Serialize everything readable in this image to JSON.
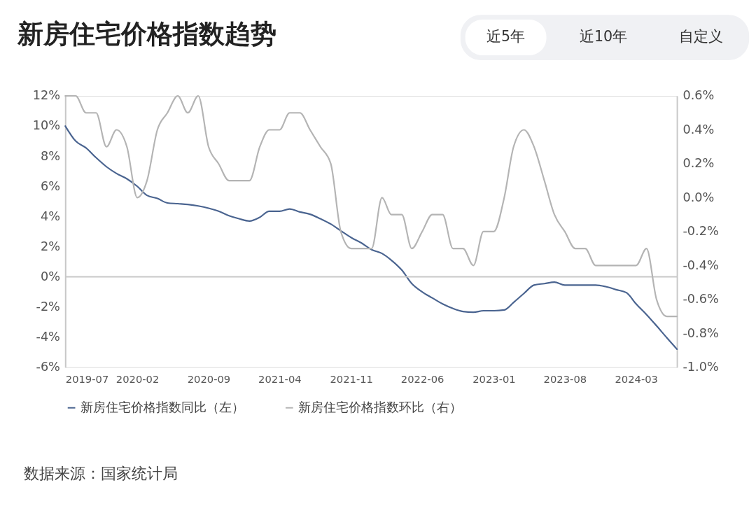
{
  "chart_data": {
    "type": "line",
    "title": "新房住宅价格指数趋势",
    "annotations": [
      "近5年",
      "近10年",
      "自定义",
      "数据来源：国家统计局"
    ],
    "x": [
      "2019-07",
      "2019-08",
      "2019-09",
      "2019-10",
      "2019-11",
      "2019-12",
      "2020-01",
      "2020-02",
      "2020-03",
      "2020-04",
      "2020-05",
      "2020-06",
      "2020-07",
      "2020-08",
      "2020-09",
      "2020-10",
      "2020-11",
      "2020-12",
      "2021-01",
      "2021-02",
      "2021-03",
      "2021-04",
      "2021-05",
      "2021-06",
      "2021-07",
      "2021-08",
      "2021-09",
      "2021-10",
      "2021-11",
      "2021-12",
      "2022-01",
      "2022-02",
      "2022-03",
      "2022-04",
      "2022-05",
      "2022-06",
      "2022-07",
      "2022-08",
      "2022-09",
      "2022-10",
      "2022-11",
      "2022-12",
      "2023-01",
      "2023-02",
      "2023-03",
      "2023-04",
      "2023-05",
      "2023-06",
      "2023-07",
      "2023-08",
      "2023-09",
      "2023-10",
      "2023-11",
      "2023-12",
      "2024-01",
      "2024-02",
      "2024-03",
      "2024-04",
      "2024-05",
      "2024-06",
      "2024-07"
    ],
    "series": [
      {
        "name": "新房住宅价格指数同比（左）",
        "color": "#4a6490",
        "values": [
          10.0,
          9.0,
          8.55,
          7.9,
          7.3,
          6.85,
          6.5,
          6.0,
          5.4,
          5.2,
          4.9,
          4.85,
          4.8,
          4.7,
          4.55,
          4.35,
          4.05,
          3.85,
          3.7,
          3.95,
          4.35,
          4.35,
          4.5,
          4.3,
          4.15,
          3.85,
          3.5,
          3.05,
          2.6,
          2.25,
          1.8,
          1.55,
          1.1,
          0.45,
          -0.45,
          -1.0,
          -1.4,
          -1.8,
          -2.1,
          -2.3,
          -2.35,
          -2.25,
          -2.25,
          -2.2,
          -1.7,
          -1.1,
          -0.55,
          -0.45,
          -0.35,
          -0.55,
          -0.55,
          -0.55,
          -0.55,
          -0.65,
          -0.85,
          -1.05,
          -1.8,
          -2.5,
          -3.25,
          -4.05,
          -4.8
        ]
      },
      {
        "name": "新房住宅价格指数环比（右）",
        "color": "#b4b4b4",
        "axis": "y2",
        "values": [
          0.6,
          0.6,
          0.5,
          0.5,
          0.3,
          0.4,
          0.3,
          0.0,
          0.1,
          0.4,
          0.5,
          0.6,
          0.5,
          0.6,
          0.3,
          0.2,
          0.1,
          0.1,
          0.1,
          0.3,
          0.4,
          0.4,
          0.5,
          0.5,
          0.4,
          0.3,
          0.2,
          -0.2,
          -0.3,
          -0.3,
          -0.3,
          0.0,
          -0.1,
          -0.1,
          -0.3,
          -0.2,
          -0.1,
          -0.1,
          -0.3,
          -0.3,
          -0.4,
          -0.2,
          -0.2,
          0.0,
          0.3,
          0.4,
          0.3,
          0.1,
          -0.1,
          -0.2,
          -0.3,
          -0.3,
          -0.4,
          -0.4,
          -0.4,
          -0.4,
          -0.4,
          -0.3,
          -0.6,
          -0.7,
          -0.7
        ]
      }
    ],
    "xlim": [
      "2019-07",
      "2024-07"
    ],
    "xticks": [
      "2019-07",
      "2020-02",
      "2020-09",
      "2021-04",
      "2021-11",
      "2022-06",
      "2023-01",
      "2023-08",
      "2024-03"
    ],
    "ylim": [
      -6,
      12
    ],
    "yticks": [
      {
        "value": -6,
        "label": "-6%"
      },
      {
        "value": -4,
        "label": "-4%"
      },
      {
        "value": -2,
        "label": "-2%"
      },
      {
        "value": 0,
        "label": "0%"
      },
      {
        "value": 2,
        "label": "2%"
      },
      {
        "value": 4,
        "label": "4%"
      },
      {
        "value": 6,
        "label": "6%"
      },
      {
        "value": 8,
        "label": "8%"
      },
      {
        "value": 10,
        "label": "10%"
      },
      {
        "value": 12,
        "label": "12%"
      }
    ],
    "y2lim": [
      -1.0,
      0.6
    ],
    "y2ticks": [
      {
        "value": -1.0,
        "label": "-1.0%"
      },
      {
        "value": -0.8,
        "label": "-0.8%"
      },
      {
        "value": -0.6,
        "label": "-0.6%"
      },
      {
        "value": -0.4,
        "label": "-0.4%"
      },
      {
        "value": -0.2,
        "label": "-0.2%"
      },
      {
        "value": 0.0,
        "label": "0.0%"
      },
      {
        "value": 0.2,
        "label": "0.2%"
      },
      {
        "value": 0.4,
        "label": "0.4%"
      },
      {
        "value": 0.6,
        "label": "0.6%"
      }
    ],
    "ref_lines": [
      {
        "axis": "y",
        "value": 0,
        "color": "#c8c8c8"
      }
    ],
    "grid": false,
    "legend": "bottom",
    "marker": "none",
    "line_style": "solid"
  }
}
